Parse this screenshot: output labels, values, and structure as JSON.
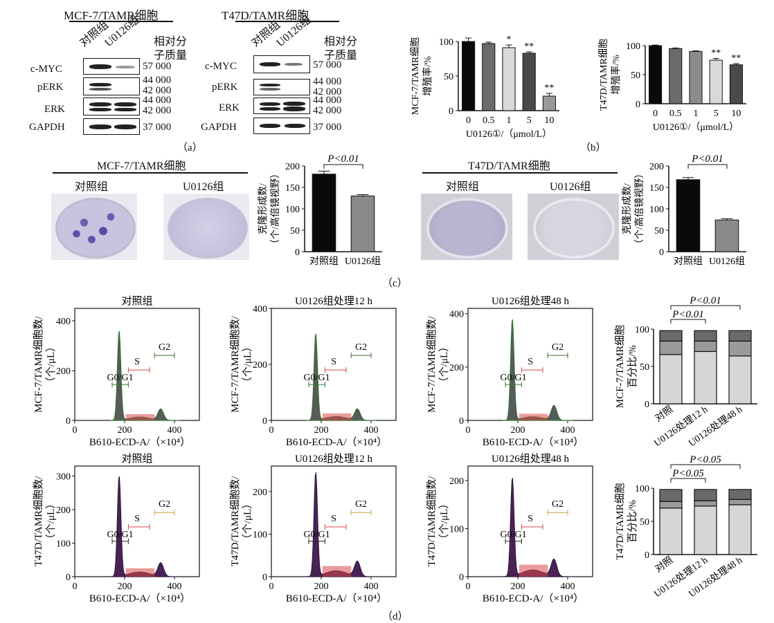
{
  "panel_labels": {
    "a": "（a）",
    "b": "（b）",
    "c": "（c）",
    "d": "（d）"
  },
  "western_blot": [
    {
      "title": "MCF-7/TAMR细胞",
      "lanes": [
        "对照组",
        "U0126组"
      ],
      "mw_header": [
        "相对分",
        "子质量"
      ],
      "rows": [
        {
          "protein": "c-MYC",
          "mw": [
            "57 000"
          ]
        },
        {
          "protein": "pERK",
          "mw": [
            "44 000",
            "42 000"
          ]
        },
        {
          "protein": "ERK",
          "mw": [
            "44 000",
            "42 000"
          ]
        },
        {
          "protein": "GAPDH",
          "mw": [
            "37 000"
          ]
        }
      ]
    },
    {
      "title": "T47D/TAMR细胞",
      "lanes": [
        "对照组",
        "U0126组"
      ],
      "mw_header": [
        "相对分",
        "子质量"
      ],
      "rows": [
        {
          "protein": "c-MYC",
          "mw": [
            "57 000"
          ]
        },
        {
          "protein": "pERK",
          "mw": [
            "44 000",
            "42 000"
          ]
        },
        {
          "protein": "ERK",
          "mw": [
            "44 000",
            "42 000"
          ]
        },
        {
          "protein": "GAPDH",
          "mw": [
            "37 000"
          ]
        }
      ]
    }
  ],
  "colony_titles": [
    "MCF-7/TAMR细胞",
    "T47D/TAMR细胞"
  ],
  "dish_labels": [
    "对照组",
    "U0126组"
  ],
  "chart_data": [
    {
      "type": "bar",
      "panel": "b-left",
      "categories": [
        "0",
        "0.5",
        "1",
        "5",
        "10"
      ],
      "values": [
        100,
        97,
        91,
        83,
        21
      ],
      "errors": [
        5,
        2,
        4,
        2,
        4
      ],
      "significance": [
        "",
        "",
        "*",
        "**",
        "**"
      ],
      "ylabel_lines": [
        "MCF-7/TAMR细胞",
        "增殖率/%"
      ],
      "xlabel": "U0126①/（μmol/L）",
      "ylim": [
        0,
        100
      ],
      "yticks": [
        "0",
        "50",
        "100"
      ],
      "colors": [
        "#0a0a0a",
        "#6b6b6b",
        "#d9d9d9",
        "#4a4a4a",
        "#9a9a9a"
      ]
    },
    {
      "type": "bar",
      "panel": "b-right",
      "categories": [
        "0",
        "0.5",
        "1",
        "5",
        "10"
      ],
      "values": [
        100,
        95,
        90,
        75,
        67
      ],
      "errors": [
        1,
        1,
        1,
        3,
        2
      ],
      "significance": [
        "",
        "",
        "",
        "**",
        "**"
      ],
      "ylabel_lines": [
        "T47D/TAMR细胞",
        "增殖率/%"
      ],
      "xlabel": "U0126①/（μmol/L）",
      "ylim": [
        0,
        100
      ],
      "yticks": [
        "0",
        "50",
        "100"
      ],
      "colors": [
        "#0a0a0a",
        "#6b6b6b",
        "#8c8c8c",
        "#d9d9d9",
        "#4a4a4a"
      ]
    },
    {
      "type": "bar",
      "panel": "c-left",
      "categories": [
        "对照组",
        "U0126组"
      ],
      "values": [
        181,
        130
      ],
      "errors": [
        7,
        3
      ],
      "pvalue": "P<0.01",
      "ylabel_lines": [
        "克隆形成数/",
        "（个/高倍镜视野）"
      ],
      "ylim": [
        0,
        200
      ],
      "yticks": [
        "0",
        "50",
        "100",
        "150",
        "200"
      ],
      "colors": [
        "#0a0a0a",
        "#8a8a8a"
      ]
    },
    {
      "type": "bar",
      "panel": "c-right",
      "categories": [
        "对照组",
        "U0126组"
      ],
      "values": [
        168,
        74
      ],
      "errors": [
        5,
        3
      ],
      "pvalue": "P<0.01",
      "ylabel_lines": [
        "克隆形成数/",
        "（个/高倍镜视野）"
      ],
      "ylim": [
        0,
        200
      ],
      "yticks": [
        "0",
        "50",
        "100",
        "150",
        "200"
      ],
      "colors": [
        "#0a0a0a",
        "#8a8a8a"
      ]
    },
    {
      "type": "area",
      "panel": "d-row1",
      "xlabel": "B610-ECD-A/（×10⁴）",
      "ylabel_lines": [
        "MCF-7/TAMR细胞数/",
        "（个/μL）"
      ],
      "histograms": [
        {
          "title": "对照组",
          "ylim": [
            0,
            450
          ],
          "yticks": [
            "0",
            "200",
            "400"
          ],
          "peak1": 360,
          "peak2": 45
        },
        {
          "title": "U0126组处理12 h",
          "ylim": [
            0,
            400
          ],
          "yticks": [
            "0",
            "200",
            "400"
          ],
          "peak1": 310,
          "peak2": 40
        },
        {
          "title": "U0126组处理48 h",
          "ylim": [
            0,
            420
          ],
          "yticks": [
            "0",
            "200",
            "400"
          ],
          "peak1": 380,
          "peak2": 55
        }
      ],
      "xticks": [
        "0",
        "200",
        "400"
      ],
      "gates": [
        "G0/G1",
        "S",
        "G2"
      ]
    },
    {
      "type": "area",
      "panel": "d-row2",
      "xlabel": "B610-ECD-A/（×10⁴）",
      "ylabel_lines": [
        "T47D/TAMR细胞数/",
        "（个/μL）"
      ],
      "histograms": [
        {
          "title": "对照组",
          "ylim": [
            0,
            330
          ],
          "yticks": [
            "0",
            "100",
            "200",
            "300"
          ],
          "peak1": 300,
          "peak2": 40
        },
        {
          "title": "U0126组处理12 h",
          "ylim": [
            0,
            260
          ],
          "yticks": [
            "0",
            "100",
            "200"
          ],
          "peak1": 245,
          "peak2": 35
        },
        {
          "title": "U0126组处理48 h",
          "ylim": [
            0,
            230
          ],
          "yticks": [
            "0",
            "100",
            "200"
          ],
          "peak1": 205,
          "peak2": 35
        }
      ],
      "xticks": [
        "0",
        "200",
        "400"
      ],
      "gates": [
        "G0/G1",
        "S",
        "G2"
      ]
    },
    {
      "type": "bar",
      "panel": "d-stacked-1",
      "stacked": true,
      "categories": [
        "对照",
        "U0126处理12 h",
        "U0126处理48 h"
      ],
      "series": [
        {
          "values": [
            66,
            70,
            64
          ],
          "color": "#d6d6d6"
        },
        {
          "values": [
            18,
            14,
            20
          ],
          "color": "#9a9a9a"
        },
        {
          "values": [
            14,
            14,
            14
          ],
          "color": "#6a6a6a"
        }
      ],
      "ylabel_lines": [
        "MCF-7/TAMR细胞",
        "百分比/%"
      ],
      "ylim": [
        0,
        100
      ],
      "yticks": [
        "0",
        "50",
        "100"
      ],
      "pvalues": [
        "P<0.01",
        "P<0.01"
      ]
    },
    {
      "type": "bar",
      "panel": "d-stacked-2",
      "stacked": true,
      "categories": [
        "对照",
        "U0126处理12 h",
        "U0126处理48 h"
      ],
      "series": [
        {
          "values": [
            70,
            73,
            75
          ],
          "color": "#d6d6d6"
        },
        {
          "values": [
            10,
            8,
            8
          ],
          "color": "#9a9a9a"
        },
        {
          "values": [
            18,
            17,
            15
          ],
          "color": "#6a6a6a"
        }
      ],
      "ylabel_lines": [
        "T47D/TAMR细胞",
        "百分比/%"
      ],
      "ylim": [
        0,
        100
      ],
      "yticks": [
        "0",
        "50",
        "100"
      ],
      "pvalues": [
        "P<0.05",
        "P<0.05"
      ]
    }
  ]
}
